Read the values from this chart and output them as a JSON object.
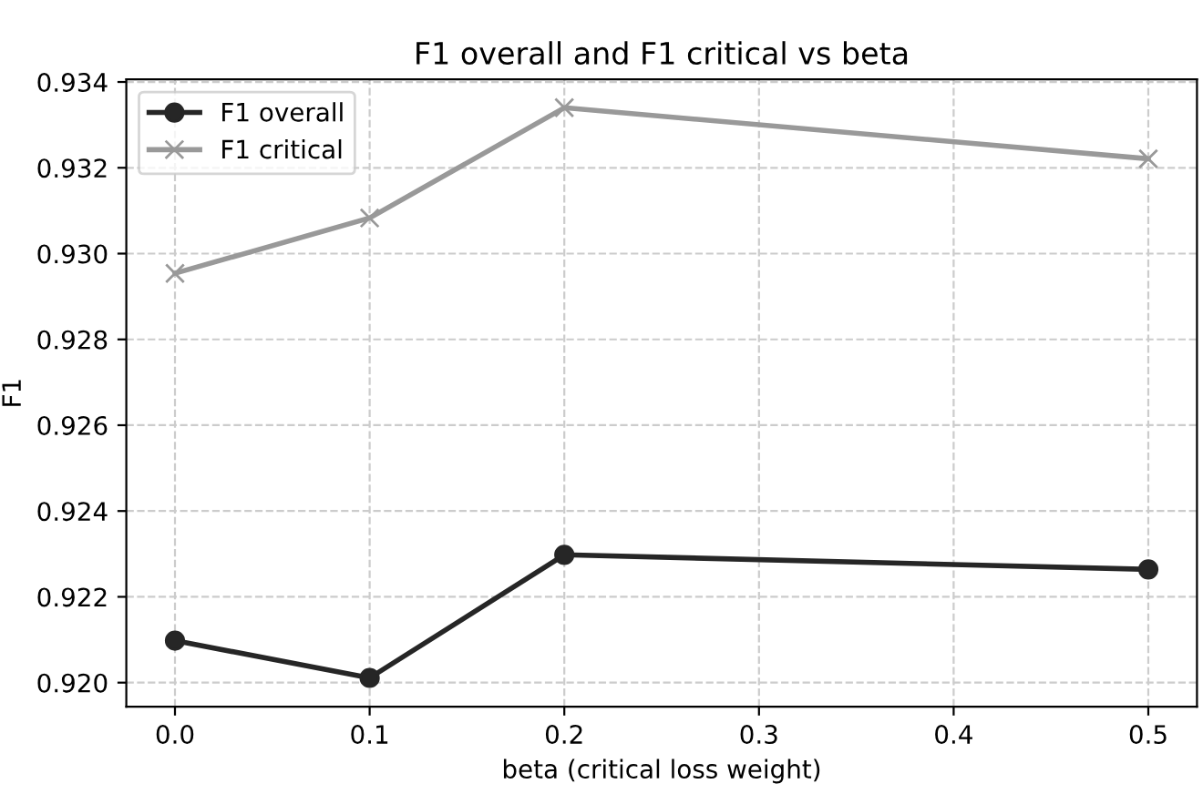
{
  "chart_data": {
    "type": "line",
    "title": "F1 overall and F1 critical vs beta",
    "xlabel": "beta (critical loss weight)",
    "ylabel": "F1",
    "x": [
      0.0,
      0.1,
      0.2,
      0.5
    ],
    "series": [
      {
        "name": "F1 overall",
        "color": "#262626",
        "marker": "circle",
        "values": [
          0.92098,
          0.92011,
          0.92298,
          0.92264
        ]
      },
      {
        "name": "F1 critical",
        "color": "#999999",
        "marker": "cross",
        "values": [
          0.92954,
          0.93083,
          0.9334,
          0.93221
        ]
      }
    ],
    "xlim": [
      -0.025,
      0.525
    ],
    "ylim": [
      0.91944,
      0.93406
    ],
    "xticks": [
      {
        "value": 0.0,
        "label": "0.0"
      },
      0.1,
      0.2,
      0.3,
      0.4,
      0.5
    ],
    "yticks": [
      {
        "value": 0.92,
        "label": "0.920"
      },
      0.922,
      0.924,
      0.926,
      0.928,
      {
        "value": 0.93,
        "label": "0.930"
      },
      0.932,
      0.934
    ],
    "grid": true,
    "legend": "top left",
    "line_style": "solid"
  }
}
